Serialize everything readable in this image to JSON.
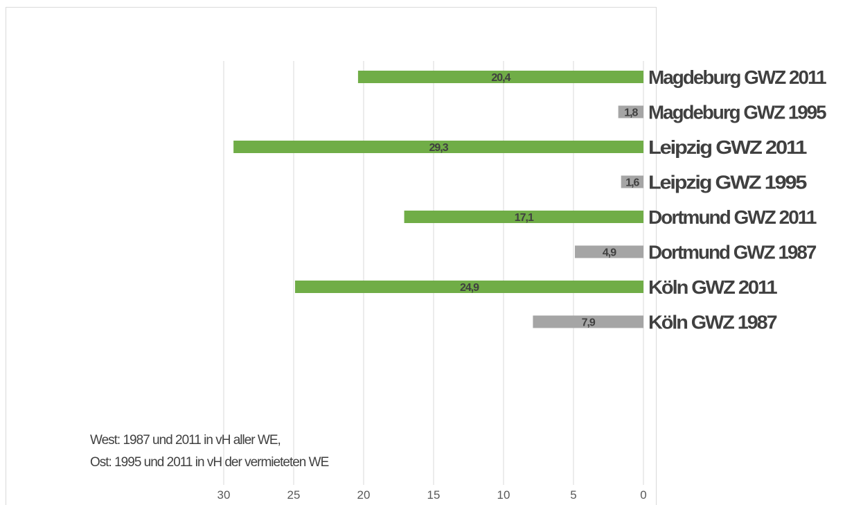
{
  "chart_data": {
    "type": "bar",
    "orientation": "horizontal",
    "x_reversed": true,
    "categories": [
      "Magdeburg GWZ 2011",
      "Magdeburg GWZ 1995",
      "Leipzig GWZ 2011",
      "Leipzig GWZ 1995",
      "Dortmund GWZ 2011",
      "Dortmund GWZ 1987",
      "Köln GWZ 2011",
      "Köln GWZ 1987"
    ],
    "values": [
      20.4,
      1.8,
      29.3,
      1.6,
      17.1,
      4.9,
      24.9,
      7.9
    ],
    "data_labels": [
      "20,4",
      "1,8",
      "29,3",
      "1,6",
      "17,1",
      "4,9",
      "24,9",
      "7,9"
    ],
    "bar_colors": [
      "#70ad47",
      "#a5a5a5",
      "#70ad47",
      "#a5a5a5",
      "#70ad47",
      "#a5a5a5",
      "#70ad47",
      "#a5a5a5"
    ],
    "xlim": [
      0,
      30
    ],
    "x_ticks": [
      30,
      25,
      20,
      15,
      10,
      5,
      0
    ],
    "x_tick_labels": [
      "30",
      "25",
      "20",
      "15",
      "10",
      "5",
      "0"
    ],
    "grid": "vertical",
    "annotations": [
      "West: 1987 und 2011 in vH aller WE,",
      "Ost: 1995 und 2011 in vH der vermieteten WE"
    ]
  }
}
